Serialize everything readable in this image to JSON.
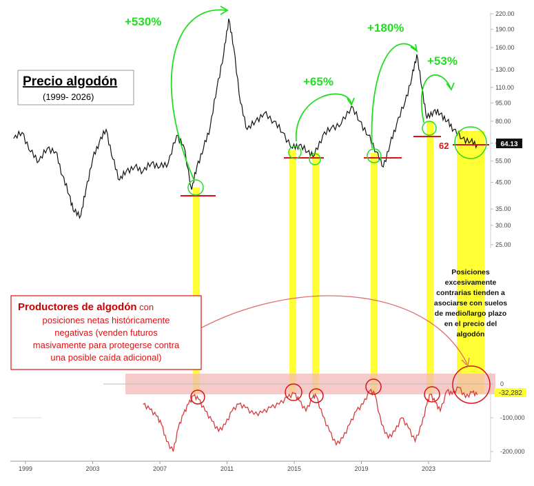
{
  "title_box": {
    "title": "Precio algodón",
    "subtitle": "(1999- 2026)"
  },
  "gain_labels": [
    "+530%",
    "+65%",
    "+180%",
    "+53%"
  ],
  "current_price_label": "64.13",
  "support_label": "62",
  "producers_box": {
    "highlight": "Productores de algodón",
    "text_1": " con",
    "line_2": "posiciones netas históricamente",
    "line_3": "negativas (venden futuros",
    "line_4": "masivamente para protegerse contra",
    "line_5": "una posible caída adicional)"
  },
  "annotation_lines": [
    "Posiciones",
    "excesivamente",
    "contrarias tienden a",
    "asociarse con suelos",
    "de medio/largo plazo",
    "en el precio del",
    "algodón"
  ],
  "current_position_label": "-32,282",
  "colors": {
    "price_line": "#111111",
    "position_line": "#d63a3a",
    "gain_green": "#22dd22",
    "support_red": "#dd1111",
    "highlight_yellow": "#ffff33",
    "band_pink": "#f4b8b8"
  },
  "chart_data": [
    {
      "type": "line",
      "name": "price",
      "x_ticks": [
        "1999",
        "2003",
        "2007",
        "2011",
        "2015",
        "2019",
        "2023"
      ],
      "y_ticks": [
        "220.00",
        "190.00",
        "160.00",
        "130.00",
        "110.00",
        "95.00",
        "80.00",
        "65.00",
        "55.00",
        "45.00",
        "35.00",
        "30.00",
        "25.00"
      ],
      "scale": "log",
      "ylim": [
        25,
        220
      ],
      "x": [
        1998.3,
        1998.8,
        1999.3,
        1999.8,
        2000.3,
        2000.8,
        2001.2,
        2001.6,
        2001.9,
        2002.3,
        2002.6,
        2003.0,
        2003.4,
        2003.8,
        2004.2,
        2004.6,
        2005.0,
        2005.5,
        2006.0,
        2006.5,
        2007.0,
        2007.5,
        2008.0,
        2008.4,
        2008.9,
        2009.2,
        2009.6,
        2010.0,
        2010.4,
        2010.8,
        2011.1,
        2011.4,
        2011.8,
        2012.2,
        2012.7,
        2013.2,
        2013.8,
        2014.3,
        2014.9,
        2015.3,
        2015.8,
        2016.2,
        2016.7,
        2017.2,
        2017.8,
        2018.4,
        2018.9,
        2019.4,
        2019.9,
        2020.3,
        2020.7,
        2021.1,
        2021.6,
        2022.0,
        2022.3,
        2022.6,
        2022.9,
        2023.3,
        2023.7,
        2024.1,
        2024.5,
        2025.0,
        2025.5,
        2025.9
      ],
      "values": [
        68,
        72,
        60,
        55,
        62,
        60,
        48,
        40,
        34,
        33,
        42,
        56,
        66,
        74,
        56,
        46,
        50,
        52,
        50,
        54,
        52,
        54,
        70,
        64,
        42,
        52,
        62,
        76,
        110,
        150,
        210,
        160,
        95,
        74,
        80,
        86,
        80,
        72,
        62,
        64,
        60,
        58,
        70,
        75,
        78,
        92,
        80,
        70,
        60,
        52,
        64,
        78,
        96,
        120,
        150,
        110,
        82,
        88,
        86,
        80,
        74,
        68,
        66,
        64.13
      ]
    },
    {
      "type": "line",
      "name": "positions",
      "y_ticks": [
        "0",
        "-100,000",
        "-200,000"
      ],
      "ylim": [
        -220000,
        20000
      ],
      "x": [
        2006.0,
        2006.4,
        2006.8,
        2007.1,
        2007.4,
        2007.8,
        2008.1,
        2008.4,
        2008.7,
        2009.0,
        2009.3,
        2009.7,
        2010.1,
        2010.5,
        2010.9,
        2011.3,
        2011.7,
        2012.1,
        2012.6,
        2013.1,
        2013.6,
        2014.1,
        2014.6,
        2015.0,
        2015.3,
        2015.7,
        2016.1,
        2016.3,
        2016.7,
        2017.1,
        2017.5,
        2017.9,
        2018.3,
        2018.7,
        2019.1,
        2019.5,
        2019.8,
        2020.2,
        2020.6,
        2021.0,
        2021.4,
        2021.8,
        2022.2,
        2022.6,
        2022.9,
        2023.1,
        2023.4,
        2023.7,
        2024.1,
        2024.4,
        2024.8,
        2025.2,
        2025.6,
        2025.9
      ],
      "values": [
        -60000,
        -75000,
        -95000,
        -120000,
        -170000,
        -200000,
        -130000,
        -90000,
        -60000,
        -35000,
        -45000,
        -80000,
        -110000,
        -140000,
        -120000,
        -80000,
        -60000,
        -70000,
        -90000,
        -85000,
        -70000,
        -60000,
        -40000,
        -28000,
        -50000,
        -80000,
        -40000,
        -35000,
        -95000,
        -140000,
        -180000,
        -160000,
        -120000,
        -80000,
        -60000,
        -20000,
        -30000,
        -120000,
        -160000,
        -140000,
        -100000,
        -130000,
        -170000,
        -120000,
        -60000,
        -30000,
        -55000,
        -80000,
        -20000,
        -30000,
        -10000,
        -40000,
        -25000,
        -32282
      ]
    }
  ]
}
